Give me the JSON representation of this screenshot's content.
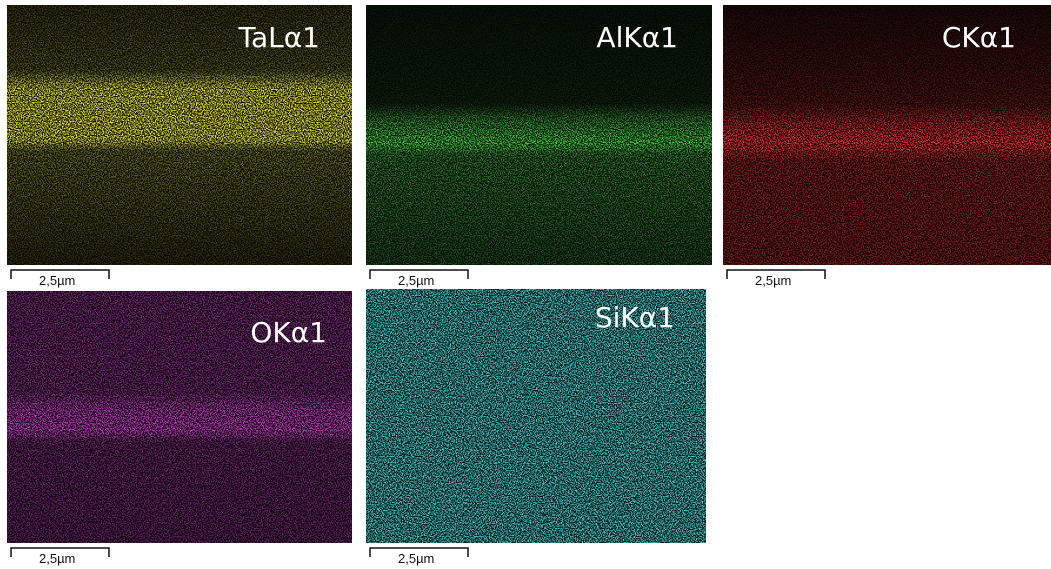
{
  "panels": [
    {
      "label": "TaLα1",
      "scale_bar": "2,5µm"
    },
    {
      "label": "AlKα1",
      "scale_bar": "2,5µm"
    },
    {
      "label": "CKα1",
      "scale_bar": "2,5µm"
    },
    {
      "label": "OKα1",
      "scale_bar": "2,5µm"
    },
    {
      "label": "SiKα1",
      "scale_bar": "2,5µm"
    }
  ]
}
